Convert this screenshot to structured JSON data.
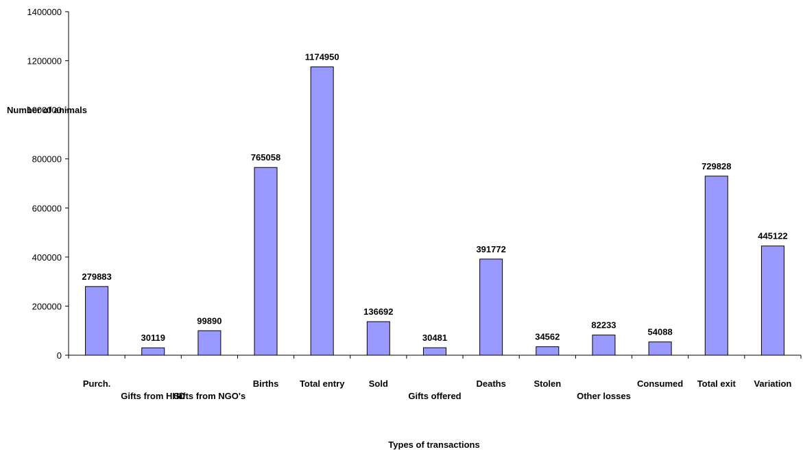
{
  "chart_data": {
    "type": "bar",
    "title": "",
    "xlabel": "Types of transactions",
    "ylabel": "Number of animals",
    "ylim": [
      0,
      1400000
    ],
    "yticks": [
      0,
      200000,
      400000,
      600000,
      800000,
      1000000,
      1200000,
      1400000
    ],
    "grid": false,
    "bar_color": "#9999ff",
    "categories": [
      "Purch.",
      "Gifts from HHD",
      "Gifts from NGO's",
      "Births",
      "Total entry",
      "Sold",
      "Gifts offered",
      "Deaths",
      "Stolen",
      "Other losses",
      "Consumed",
      "Total exit",
      "Variation"
    ],
    "values": [
      279883,
      30119,
      99890,
      765058,
      1174950,
      136692,
      30481,
      391772,
      34562,
      82233,
      54088,
      729828,
      445122
    ],
    "data_labels": [
      "279883",
      "30119",
      "99890",
      "765058",
      "1174950",
      "136692",
      "30481",
      "391772",
      "34562",
      "82233",
      "54088",
      "729828",
      "445122"
    ]
  }
}
